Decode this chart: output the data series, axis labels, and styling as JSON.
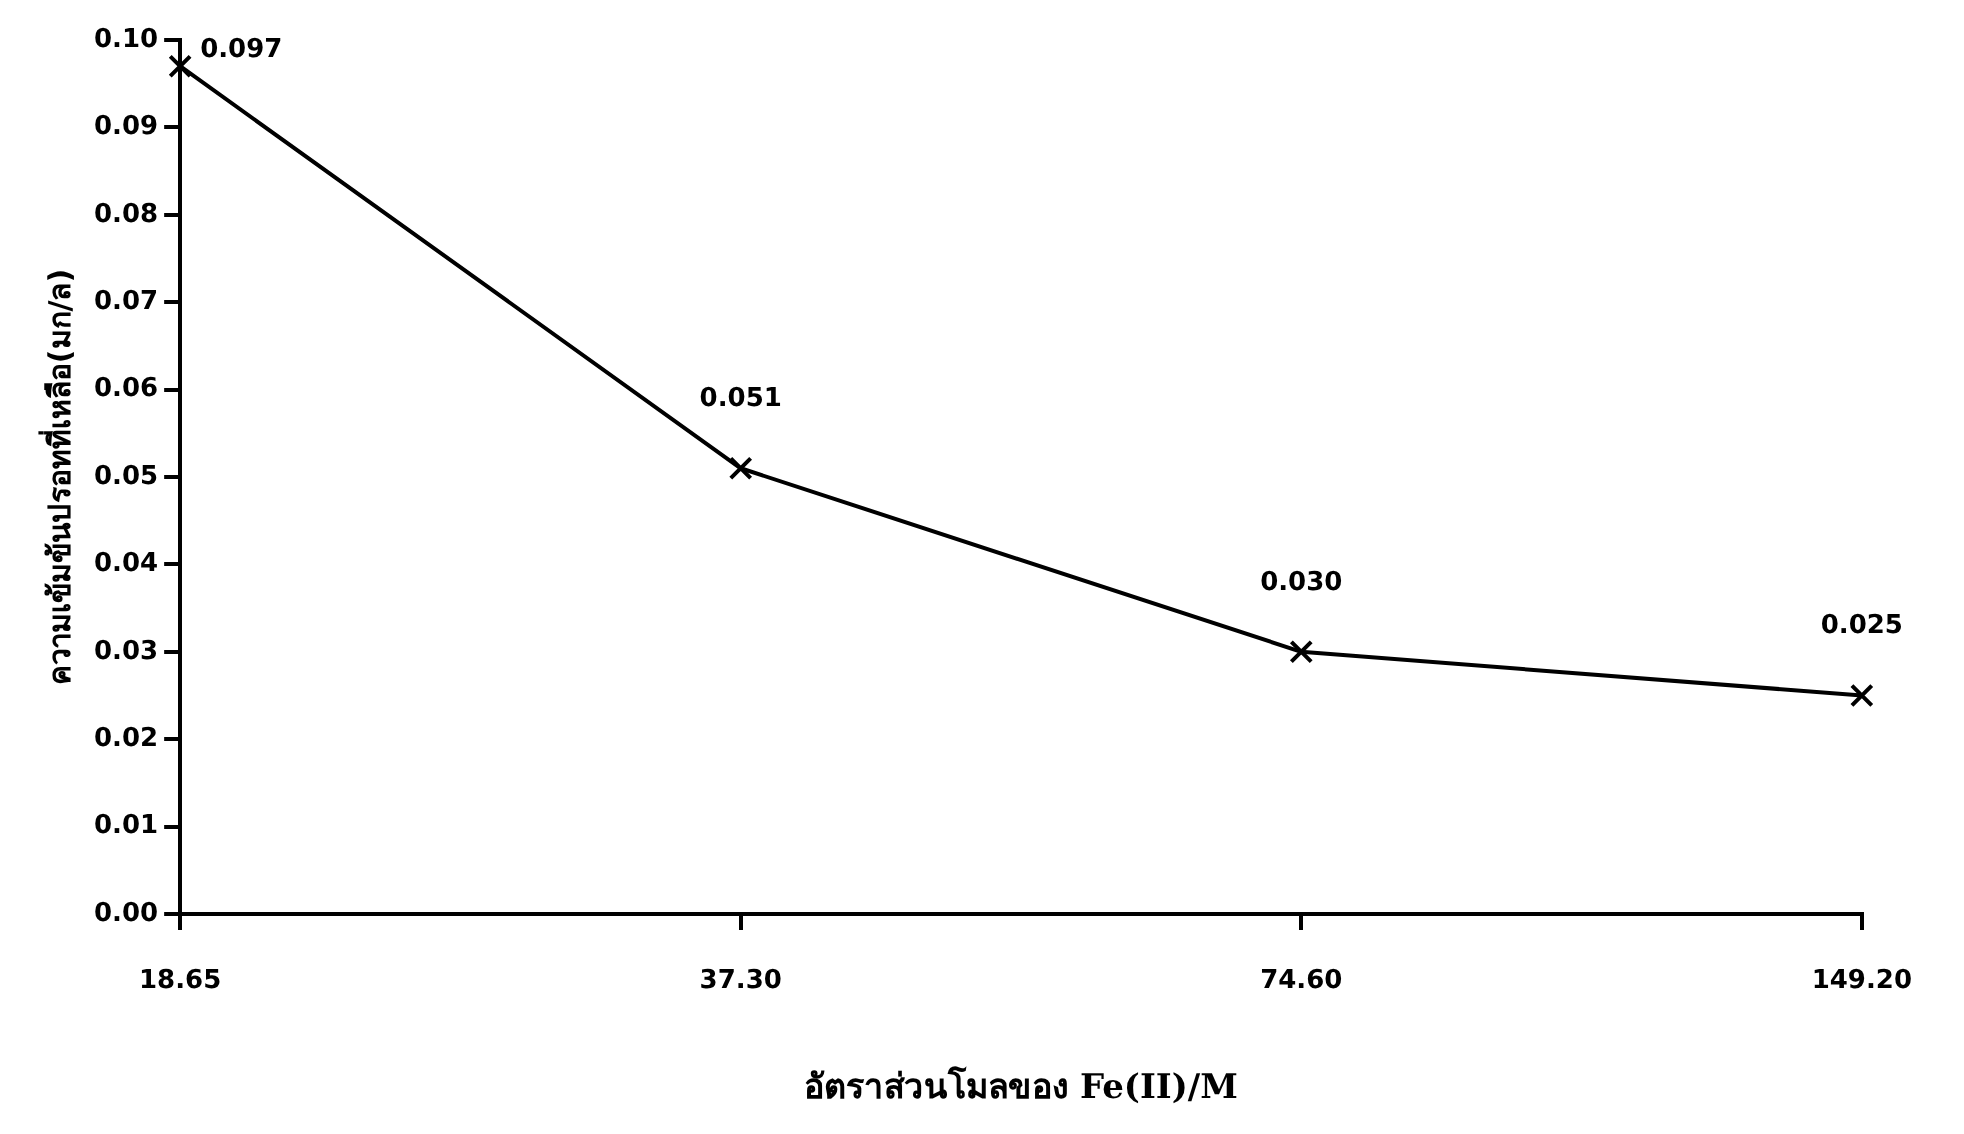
{
  "chart_data": {
    "type": "line",
    "xlabel": "อัตราส่วนโมลของ Fe(II)/M",
    "ylabel": "ความเข้มข้นปรอทที่เหลือ(มก/ล)",
    "categories": [
      "18.65",
      "37.30",
      "74.60",
      "149.20"
    ],
    "series": [
      {
        "color": "#000000",
        "values": [
          0.097,
          0.051,
          0.03,
          0.025
        ]
      }
    ],
    "value_labels": [
      "0.097",
      "0.051",
      "0.030",
      "0.025"
    ],
    "ylim": [
      0,
      0.1
    ],
    "yticks": [
      {
        "value": 0,
        "label": "0.00"
      },
      0.01,
      0.02,
      0.03,
      0.04,
      0.05,
      0.06,
      0.07,
      0.08,
      0.09,
      {
        "value": 0.1,
        "label": "0.10"
      }
    ],
    "grid": false,
    "legend": false,
    "marker": "cross",
    "line_style": "solid"
  }
}
